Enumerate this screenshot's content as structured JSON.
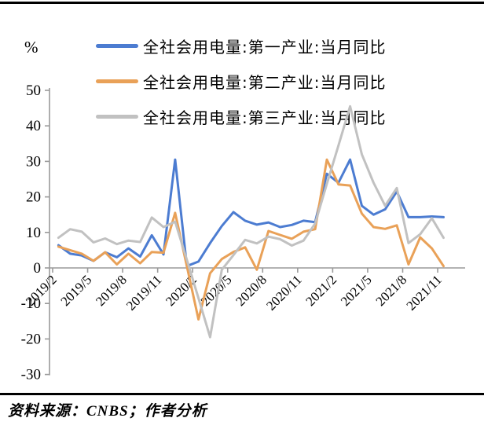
{
  "page": {
    "unit_label": "%"
  },
  "legend": [
    {
      "label": "全社会用电量:第一产业:当月同比",
      "color": "#4C7CD1"
    },
    {
      "label": "全社会用电量:第二产业:当月同比",
      "color": "#E9A158"
    },
    {
      "label": "全社会用电量:第三产业:当月同比",
      "color": "#C1C1C1"
    }
  ],
  "chart_data": {
    "type": "line",
    "title": "",
    "ylabel": "%",
    "xlabel": "",
    "ylim": [
      -30,
      50
    ],
    "yticks": [
      50,
      40,
      30,
      20,
      10,
      0,
      -10,
      -20,
      -30
    ],
    "grid": false,
    "legend_position": "top-left",
    "xtick_label_every": 3,
    "x": [
      "2019/2",
      "2019/3",
      "2019/4",
      "2019/5",
      "2019/6",
      "2019/7",
      "2019/8",
      "2019/9",
      "2019/10",
      "2019/11",
      "2019/12",
      "2020/1",
      "2020/2",
      "2020/3",
      "2020/4",
      "2020/5",
      "2020/6",
      "2020/7",
      "2020/8",
      "2020/9",
      "2020/10",
      "2020/11",
      "2020/12",
      "2021/1",
      "2021/2",
      "2021/3",
      "2021/4",
      "2021/5",
      "2021/6",
      "2021/7",
      "2021/8",
      "2021/9",
      "2021/10",
      "2021/11"
    ],
    "series": [
      {
        "name": "全社会用电量:第一产业:当月同比",
        "color": "#4C7CD1",
        "values": [
          6.4,
          4.0,
          3.5,
          2.0,
          4.4,
          3.0,
          5.5,
          3.2,
          9.2,
          3.8,
          30.5,
          0.5,
          1.8,
          7.0,
          11.8,
          15.7,
          13.3,
          12.2,
          12.8,
          11.5,
          12.1,
          13.3,
          12.9,
          26.5,
          24.0,
          30.5,
          17.5,
          15.0,
          16.5,
          21.5,
          14.3,
          14.3,
          14.5,
          14.3
        ]
      },
      {
        "name": "全社会用电量:第二产业:当月同比",
        "color": "#E9A158",
        "values": [
          6.0,
          5.0,
          4.0,
          2.0,
          4.4,
          1.0,
          4.0,
          1.3,
          4.5,
          4.3,
          15.5,
          0.5,
          -14.5,
          -1.5,
          2.5,
          4.5,
          5.8,
          -0.5,
          10.4,
          9.3,
          8.2,
          10.2,
          10.9,
          30.5,
          23.5,
          23.2,
          15.3,
          11.5,
          11.0,
          12.0,
          1.0,
          8.6,
          5.5,
          0.5
        ]
      },
      {
        "name": "全社会用电量:第三产业:当月同比",
        "color": "#C1C1C1",
        "values": [
          8.5,
          10.9,
          10.2,
          7.2,
          8.3,
          6.7,
          7.7,
          7.3,
          14.2,
          11.5,
          13.0,
          2.3,
          -8.5,
          -19.5,
          -0.5,
          3.6,
          7.9,
          6.9,
          8.8,
          8.1,
          6.3,
          7.7,
          12.5,
          23.7,
          34.5,
          45.5,
          32.0,
          24.0,
          17.5,
          22.5,
          7.0,
          9.5,
          14.0,
          8.5
        ]
      }
    ]
  },
  "footer": {
    "source_text": "资料来源：CNBS；作者分析"
  }
}
